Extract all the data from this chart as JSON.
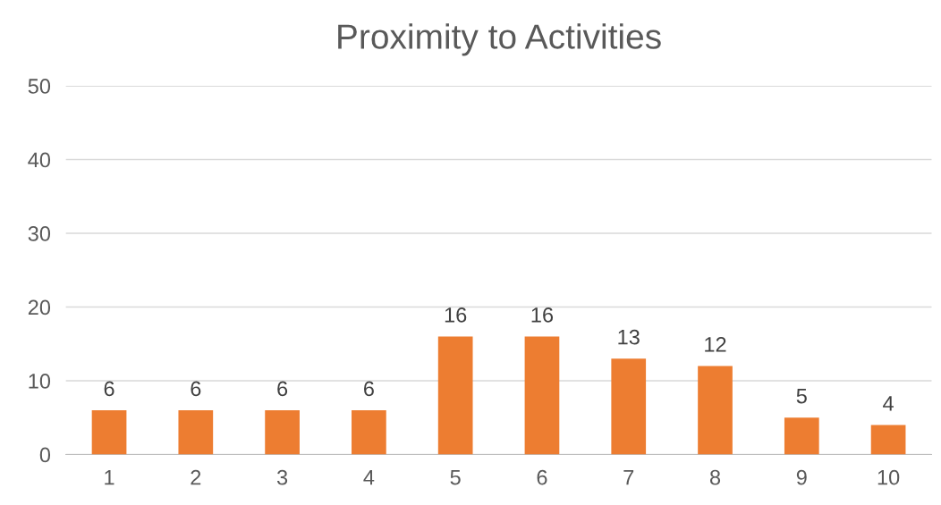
{
  "chart_data": {
    "type": "bar",
    "title": "Proximity to Activities",
    "categories": [
      "1",
      "2",
      "3",
      "4",
      "5",
      "6",
      "7",
      "8",
      "9",
      "10"
    ],
    "values": [
      6,
      6,
      6,
      6,
      16,
      16,
      13,
      12,
      5,
      4
    ],
    "color": "#ed7d31",
    "ylim": [
      0,
      50
    ],
    "yticks": [
      0,
      10,
      20,
      30,
      40,
      50
    ],
    "grid": "y",
    "data_labels": true
  }
}
